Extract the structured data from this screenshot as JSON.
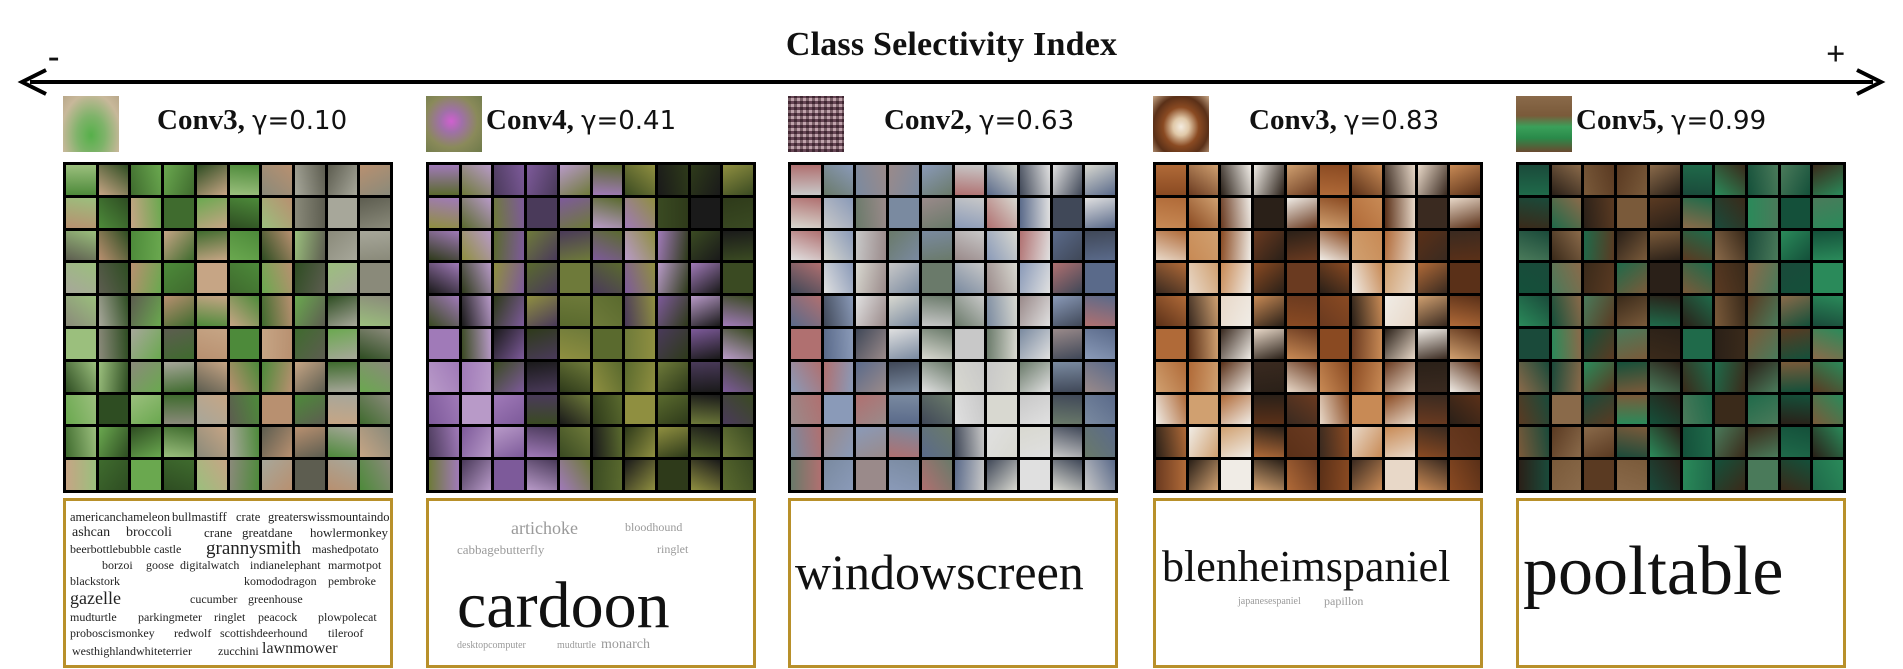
{
  "axis": {
    "title": "Class Selectivity Index",
    "minus": "-",
    "plus": "+"
  },
  "panels": [
    {
      "layer": "Conv3",
      "gamma_label": "γ=0.10",
      "colors": {
        "thumb": "#7fb36a",
        "tiles": [
          "#4d8a3a",
          "#6aa84f",
          "#8a8a7a",
          "#b89070",
          "#3f6b2e",
          "#9bbf7d",
          "#5d5d50",
          "#c6a585",
          "#2e4d22",
          "#a7a79a"
        ]
      },
      "cloud_words": [
        "americanchameleon",
        "bullmastiff",
        "crate",
        "greaterswissmountaindog",
        "ashcan",
        "broccoli",
        "crane",
        "greatdane",
        "howlermonkey",
        "beerbottle",
        "bubble",
        "castle",
        "grannysmith",
        "mashedpotato",
        "borzoi",
        "goose",
        "digitalwatch",
        "indianelephant",
        "marmot",
        "pot",
        "blackstork",
        "komododragon",
        "pembroke",
        "gazelle",
        "cucumber",
        "greenhouse",
        "mudturtle",
        "parkingmeter",
        "ringlet",
        "peacock",
        "plowpolecat",
        "proboscismonkey",
        "redwolf",
        "scottishdeerhound",
        "tileroof",
        "westhighlandwhiteterrier",
        "zucchini",
        "lawnmower"
      ]
    },
    {
      "layer": "Conv4",
      "gamma_label": "γ=0.41",
      "colors": {
        "thumb": "#9a7aa0",
        "tiles": [
          "#5a6a2e",
          "#7d5a9a",
          "#3a4a22",
          "#8f8f40",
          "#4a3a5a",
          "#a07ab8",
          "#2e3a1a",
          "#6e7a3a",
          "#b89ac8",
          "#1a1a1a"
        ]
      },
      "cloud_words": [
        "artichoke",
        "bloodhound",
        "cabbagebutterfly",
        "ringlet",
        "cardoon",
        "desktopcomputer",
        "mudturtle",
        "monarch"
      ]
    },
    {
      "layer": "Conv2",
      "gamma_label": "γ=0.63",
      "colors": {
        "thumb": "#a07a8a",
        "tiles": [
          "#c8c8c8",
          "#9a8a8a",
          "#5a6a8a",
          "#d8d8d0",
          "#7a8aa0",
          "#b07070",
          "#e0e0e0",
          "#6a7a6a",
          "#8a9ab8",
          "#404858"
        ]
      },
      "cloud_words": [
        "windowscreen"
      ]
    },
    {
      "layer": "Conv3",
      "gamma_label": "γ=0.83",
      "colors": {
        "thumb": "#8a5a3a",
        "tiles": [
          "#8a4a22",
          "#f0ece6",
          "#5a3018",
          "#c88a55",
          "#2a2018",
          "#b06a38",
          "#e8d8c8",
          "#6a3a20",
          "#d0a070",
          "#3a2a20"
        ]
      },
      "cloud_words": [
        "blenheimspaniel",
        "japanesespaniel",
        "papillon"
      ]
    },
    {
      "layer": "Conv5",
      "gamma_label": "γ=0.99",
      "colors": {
        "thumb": "#3a8a4a",
        "tiles": [
          "#1f6a4a",
          "#5a3a22",
          "#2a8a5a",
          "#3a2a1a",
          "#7a5a3a",
          "#1a4a3a",
          "#4a7a5a",
          "#2a2018",
          "#8a6a4a",
          "#14503a"
        ]
      },
      "cloud_words": [
        "pooltable"
      ]
    }
  ]
}
